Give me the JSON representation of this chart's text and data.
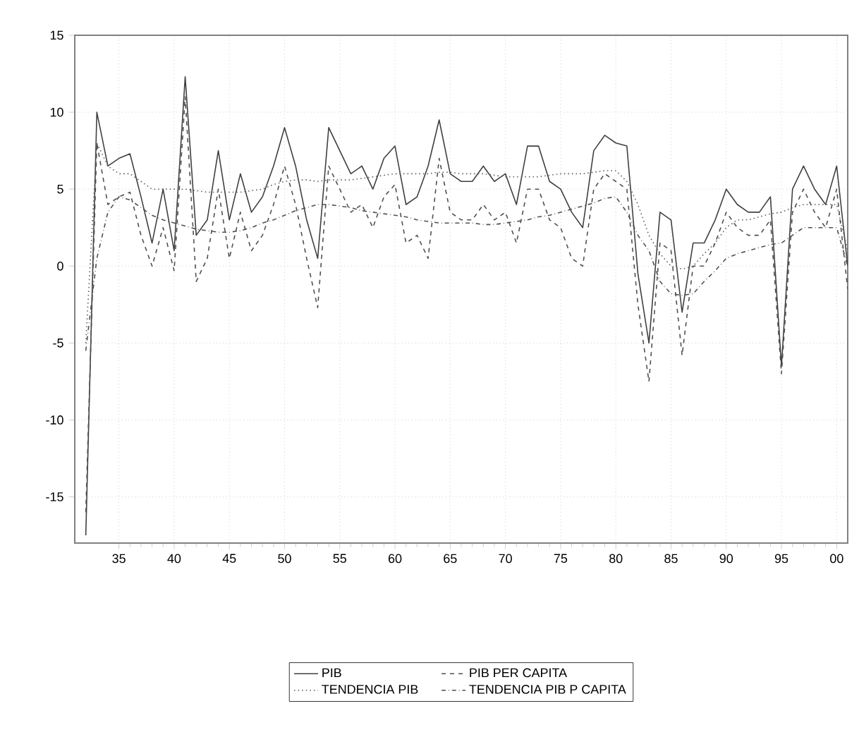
{
  "chart_data": {
    "type": "line",
    "x": [
      1932,
      1933,
      1934,
      1935,
      1936,
      1937,
      1938,
      1939,
      1940,
      1941,
      1942,
      1943,
      1944,
      1945,
      1946,
      1947,
      1948,
      1949,
      1950,
      1951,
      1952,
      1953,
      1954,
      1955,
      1956,
      1957,
      1958,
      1959,
      1960,
      1961,
      1962,
      1963,
      1964,
      1965,
      1966,
      1967,
      1968,
      1969,
      1970,
      1971,
      1972,
      1973,
      1974,
      1975,
      1976,
      1977,
      1978,
      1979,
      1980,
      1981,
      1982,
      1983,
      1984,
      1985,
      1986,
      1987,
      1988,
      1989,
      1990,
      1991,
      1992,
      1993,
      1994,
      1995,
      1996,
      1997,
      1998,
      1999,
      2000,
      2001
    ],
    "series": [
      {
        "name": "PIB",
        "color": "#404040",
        "line_style": "solid",
        "values": [
          -17.5,
          10,
          6.5,
          7,
          7.3,
          4.5,
          1.5,
          5,
          1,
          12.3,
          2,
          3,
          7.5,
          3,
          6,
          3.5,
          4.5,
          6.5,
          9,
          6.5,
          3,
          0.5,
          9,
          7.5,
          6,
          6.5,
          5,
          7,
          7.8,
          4,
          4.5,
          6.5,
          9.5,
          6,
          5.5,
          5.5,
          6.5,
          5.5,
          6,
          4,
          7.8,
          7.8,
          5.5,
          5,
          3.5,
          2.5,
          7.5,
          8.5,
          8,
          7.8,
          -0.5,
          -5,
          3.5,
          3,
          -3,
          1.5,
          1.5,
          3,
          5,
          4,
          3.5,
          3.5,
          4.5,
          -6.5,
          5,
          6.5,
          5,
          4,
          6.5,
          0
        ]
      },
      {
        "name": "PIB PER CAPITA",
        "color": "#505050",
        "line_style": "dashed",
        "values": [
          -16,
          8,
          4,
          4.5,
          4.8,
          2,
          0,
          2.5,
          -0.3,
          11,
          -1,
          0.5,
          5,
          0.5,
          3.5,
          1,
          2,
          4,
          6.5,
          4,
          0.5,
          -2.7,
          6.5,
          5,
          3.5,
          4,
          2.5,
          4.5,
          5.3,
          1.5,
          2,
          0.5,
          7,
          3.5,
          3,
          3,
          4,
          3,
          3.5,
          1.5,
          5,
          5,
          3,
          2.5,
          0.5,
          0,
          5,
          6,
          5.5,
          5,
          -2.5,
          -7.5,
          1.5,
          1,
          -5.8,
          0,
          0,
          1.5,
          3.5,
          2.5,
          2,
          2,
          3,
          -7,
          3.5,
          5,
          3.5,
          2.5,
          5,
          -1.5
        ]
      },
      {
        "name": "TENDENCIA PIB",
        "color": "#606060",
        "line_style": "dotted",
        "values": [
          -5,
          8,
          6.5,
          6,
          6,
          5.5,
          5,
          5,
          5,
          5,
          4.9,
          4.8,
          4.8,
          4.8,
          4.8,
          4.9,
          5,
          5.3,
          5.5,
          5.6,
          5.6,
          5.5,
          5.6,
          5.6,
          5.6,
          5.7,
          5.8,
          5.9,
          6,
          6,
          6,
          6,
          6.1,
          6.1,
          6,
          6,
          6,
          5.9,
          5.8,
          5.8,
          5.8,
          5.8,
          5.9,
          6,
          6,
          6,
          6.1,
          6.2,
          6.2,
          5.5,
          4,
          2,
          0.8,
          0,
          -0.2,
          0,
          0.8,
          1.5,
          2.5,
          3,
          3,
          3.2,
          3.4,
          3.5,
          3.8,
          4,
          4,
          4,
          4,
          1
        ]
      },
      {
        "name": "TENDENCIA PIB P CAPITA",
        "color": "#505050",
        "line_style": "dashdotted",
        "values": [
          -5.5,
          0.5,
          3.5,
          4.5,
          4.3,
          3.8,
          3.3,
          3,
          2.8,
          2.6,
          2.4,
          2.3,
          2.2,
          2.2,
          2.3,
          2.5,
          2.8,
          3,
          3.3,
          3.6,
          3.8,
          4,
          4,
          3.9,
          3.8,
          3.6,
          3.5,
          3.4,
          3.3,
          3.2,
          3,
          2.9,
          2.8,
          2.8,
          2.8,
          2.8,
          2.7,
          2.7,
          2.8,
          2.9,
          3,
          3.2,
          3.3,
          3.5,
          3.7,
          3.9,
          4.1,
          4.4,
          4.5,
          3.5,
          2,
          1,
          -1,
          -1.8,
          -1.9,
          -1.8,
          -1,
          -0.3,
          0.5,
          0.8,
          1,
          1.2,
          1.4,
          1.5,
          2,
          2.5,
          2.5,
          2.5,
          2.5,
          0
        ]
      }
    ],
    "xlim": [
      1931,
      2001
    ],
    "xticks": [
      {
        "value": 1935,
        "label": "35"
      },
      {
        "value": 1940,
        "label": "40"
      },
      {
        "value": 1945,
        "label": "45"
      },
      {
        "value": 1950,
        "label": "50"
      },
      {
        "value": 1955,
        "label": "55"
      },
      {
        "value": 1960,
        "label": "60"
      },
      {
        "value": 1965,
        "label": "65"
      },
      {
        "value": 1970,
        "label": "70"
      },
      {
        "value": 1975,
        "label": "75"
      },
      {
        "value": 1980,
        "label": "80"
      },
      {
        "value": 1985,
        "label": "85"
      },
      {
        "value": 1990,
        "label": "90"
      },
      {
        "value": 1995,
        "label": "95"
      },
      {
        "value": 2000,
        "label": "00"
      }
    ],
    "ylim": [
      -18,
      15
    ],
    "yticks": [
      -15,
      -10,
      -5,
      0,
      5,
      10,
      15
    ],
    "grid": true,
    "legend": "bottom"
  }
}
